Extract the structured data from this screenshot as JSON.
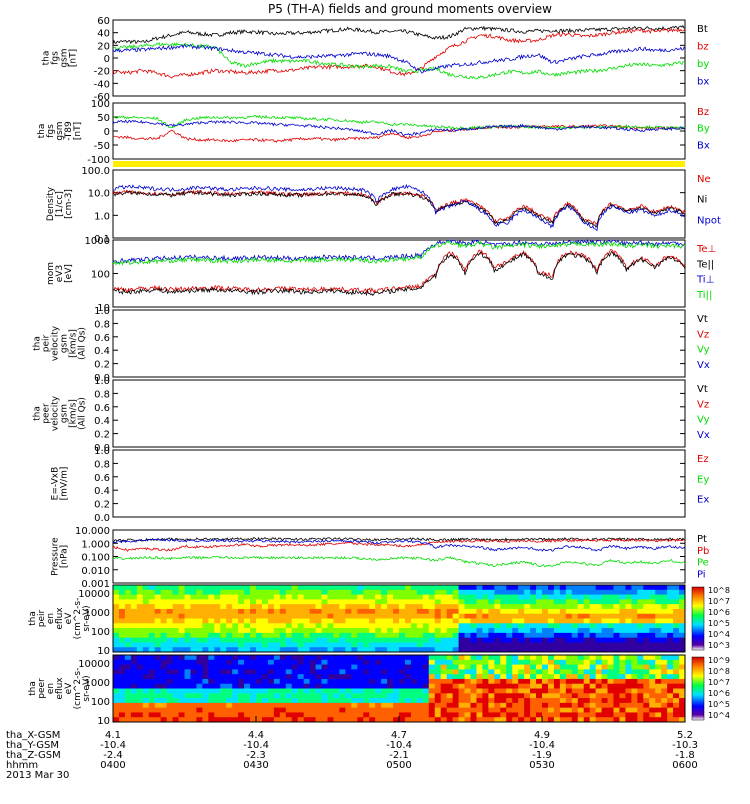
{
  "title": "P5 (TH-A) fields and ground moments overview",
  "date_label": "2013 Mar 30",
  "time_axis": {
    "ticks": [
      "0400",
      "0430",
      "0500",
      "0530",
      "0600"
    ],
    "rows": [
      {
        "label": "tha_X-GSM",
        "values": [
          "4.1",
          "4.4",
          "4.7",
          "4.9",
          "5.2"
        ]
      },
      {
        "label": "tha_Y-GSM",
        "values": [
          "-10.4",
          "-10.4",
          "-10.4",
          "-10.4",
          "-10.3"
        ]
      },
      {
        "label": "tha_Z-GSM",
        "values": [
          "-2.4",
          "-2.3",
          "-2.1",
          "-1.9",
          "-1.8"
        ]
      },
      {
        "label": "hhmm",
        "values": [
          "0400",
          "0430",
          "0500",
          "0530",
          "0600"
        ]
      }
    ]
  },
  "colors": {
    "black": "#000000",
    "red": "#e00000",
    "green": "#00dd00",
    "blue": "#0000d0",
    "yellow": "#ffee00"
  },
  "chart_data": [
    {
      "type": "line",
      "id": "fgs",
      "ylabel_lines": [
        "tha",
        "fgs",
        "gsm",
        "[nT]"
      ],
      "yticks": [
        "60",
        "40",
        "20",
        "0",
        "-20",
        "-40",
        "-60"
      ],
      "ylim": [
        -60,
        65
      ],
      "series": [
        {
          "name": "Bt",
          "color": "#000000",
          "values": [
            28,
            30,
            28,
            35,
            40,
            45,
            42,
            40,
            44,
            46,
            45,
            42,
            43,
            44,
            46,
            48,
            50,
            48,
            45,
            46,
            46,
            40,
            35,
            38,
            50,
            52,
            50,
            48,
            46,
            47,
            48,
            47,
            48,
            49,
            50,
            51,
            52,
            51,
            52,
            53
          ]
        },
        {
          "name": "bz",
          "color": "#e00000",
          "values": [
            -20,
            -22,
            -18,
            -22,
            -28,
            -25,
            -22,
            -18,
            -20,
            -22,
            -20,
            -18,
            -18,
            -15,
            -12,
            -12,
            -12,
            -10,
            -12,
            -20,
            -25,
            -15,
            5,
            20,
            30,
            40,
            38,
            32,
            30,
            32,
            40,
            42,
            38,
            40,
            44,
            46,
            48,
            46,
            48,
            50
          ]
        },
        {
          "name": "by",
          "color": "#00dd00",
          "values": [
            18,
            20,
            22,
            25,
            25,
            24,
            22,
            20,
            -5,
            -10,
            -5,
            -2,
            -3,
            -2,
            -5,
            -8,
            -10,
            -12,
            -10,
            -12,
            -20,
            -18,
            -15,
            -25,
            -28,
            -30,
            -25,
            -20,
            -22,
            -20,
            -25,
            -22,
            -20,
            -18,
            -15,
            -10,
            -8,
            -10,
            -8,
            -5
          ]
        },
        {
          "name": "bx",
          "color": "#0000d0",
          "values": [
            15,
            15,
            16,
            18,
            20,
            22,
            20,
            18,
            15,
            12,
            10,
            8,
            5,
            4,
            5,
            6,
            8,
            10,
            8,
            5,
            -5,
            -20,
            -15,
            -10,
            -8,
            -5,
            -2,
            0,
            5,
            8,
            -5,
            0,
            5,
            8,
            12,
            15,
            18,
            15,
            16,
            18
          ]
        }
      ]
    },
    {
      "type": "line",
      "id": "t89",
      "ylabel_lines": [
        "tha",
        "fgs",
        "gsm",
        "-T89",
        "[nT]"
      ],
      "yticks": [
        "100",
        "50",
        "0",
        "-50",
        "-100"
      ],
      "ylim": [
        -125,
        110
      ],
      "series": [
        {
          "name": "Bz",
          "color": "#e00000",
          "values": [
            -30,
            -35,
            -40,
            -40,
            -5,
            -40,
            -45,
            -45,
            -50,
            -45,
            -45,
            -50,
            -45,
            -40,
            -40,
            -45,
            -40,
            -38,
            -35,
            -15,
            -35,
            -30,
            -10,
            -5,
            0,
            5,
            10,
            8,
            10,
            12,
            12,
            10,
            12,
            14,
            12,
            10,
            5,
            5,
            5,
            5
          ]
        },
        {
          "name": "By",
          "color": "#00dd00",
          "values": [
            50,
            50,
            48,
            45,
            5,
            40,
            48,
            50,
            48,
            50,
            52,
            50,
            48,
            45,
            42,
            40,
            35,
            30,
            30,
            20,
            20,
            15,
            10,
            8,
            5,
            8,
            10,
            12,
            10,
            8,
            8,
            5,
            10,
            8,
            10,
            12,
            10,
            8,
            5,
            5
          ]
        },
        {
          "name": "Bx",
          "color": "#0000d0",
          "values": [
            30,
            32,
            30,
            25,
            15,
            20,
            28,
            30,
            30,
            28,
            25,
            20,
            18,
            15,
            10,
            5,
            0,
            -10,
            -20,
            -5,
            -25,
            -15,
            0,
            -5,
            0,
            5,
            10,
            12,
            15,
            8,
            0,
            5,
            10,
            8,
            5,
            0,
            -5,
            0,
            2,
            5
          ]
        }
      ]
    },
    {
      "type": "line",
      "id": "density",
      "log": true,
      "ylabel_lines": [
        "Density",
        "[1/cc]",
        "[cm-3]"
      ],
      "yticks": [
        "100.0",
        "10.0",
        "1.0",
        "0.1"
      ],
      "ylim": [
        0.1,
        150
      ],
      "series": [
        {
          "name": "Ne",
          "color": "#e00000",
          "values": [
            12,
            14,
            13,
            12,
            11,
            13,
            14,
            12,
            11,
            12,
            13,
            12,
            11,
            11,
            12,
            13,
            12,
            11,
            4,
            12,
            13,
            10,
            2,
            4,
            6,
            3,
            0.6,
            0.8,
            3,
            1.2,
            0.6,
            4,
            0.8,
            0.4,
            4,
            2,
            3,
            1.5,
            3,
            1.5
          ]
        },
        {
          "name": "Ni",
          "color": "#000000",
          "values": [
            11,
            13,
            12,
            11,
            10,
            12,
            13,
            11,
            10,
            11,
            12,
            11,
            10,
            10,
            11,
            12,
            11,
            10,
            3.5,
            11,
            12,
            9,
            1.8,
            3.5,
            5,
            2.5,
            0.5,
            0.7,
            2.5,
            1,
            0.5,
            3.5,
            0.7,
            0.35,
            3.5,
            1.8,
            2.5,
            1.3,
            2.5,
            1.3
          ]
        },
        {
          "name": "Npot",
          "color": "#0000d0",
          "values": [
            20,
            25,
            22,
            20,
            18,
            20,
            24,
            20,
            18,
            20,
            22,
            20,
            18,
            18,
            20,
            22,
            20,
            18,
            5,
            18,
            25,
            15,
            1.5,
            3,
            5,
            2,
            0.4,
            0.5,
            2,
            0.8,
            0.3,
            3,
            0.5,
            0.25,
            3,
            1.5,
            2,
            1,
            2,
            1
          ]
        }
      ]
    },
    {
      "type": "line",
      "id": "temp",
      "log": true,
      "ylabel_lines": [
        "mom",
        "eV3",
        "[eV]"
      ],
      "yticks": [
        "1000",
        "100",
        "10"
      ],
      "ylim": [
        10,
        5000
      ],
      "series": [
        {
          "name": "Te⊥",
          "color": "#e00000",
          "values": [
            55,
            50,
            55,
            60,
            50,
            55,
            58,
            60,
            55,
            52,
            50,
            55,
            55,
            50,
            52,
            55,
            50,
            48,
            45,
            55,
            60,
            70,
            200,
            1500,
            250,
            1800,
            400,
            700,
            1500,
            250,
            180,
            1600,
            1200,
            300,
            1800,
            350,
            900,
            450,
            1200,
            400
          ]
        },
        {
          "name": "Te||",
          "color": "#000000",
          "values": [
            45,
            40,
            45,
            50,
            40,
            45,
            48,
            50,
            45,
            42,
            40,
            45,
            45,
            40,
            42,
            45,
            40,
            38,
            35,
            45,
            50,
            60,
            180,
            1300,
            200,
            1500,
            300,
            600,
            1300,
            200,
            150,
            1400,
            1000,
            250,
            1500,
            300,
            800,
            400,
            1000,
            350
          ]
        },
        {
          "name": "Ti⊥",
          "color": "#0000d0",
          "values": [
            700,
            750,
            800,
            900,
            950,
            1000,
            1000,
            950,
            900,
            950,
            1000,
            950,
            900,
            950,
            1000,
            1050,
            1000,
            950,
            900,
            1000,
            1100,
            1200,
            3500,
            5000,
            3500,
            4500,
            3000,
            3500,
            4000,
            3500,
            3500,
            4000,
            4500,
            4000,
            4500,
            3500,
            4000,
            3500,
            3800,
            3500
          ]
        },
        {
          "name": "Ti||",
          "color": "#00dd00",
          "values": [
            600,
            620,
            650,
            700,
            750,
            800,
            800,
            750,
            700,
            750,
            800,
            750,
            700,
            750,
            800,
            850,
            800,
            750,
            700,
            800,
            900,
            1000,
            2800,
            4000,
            2800,
            3600,
            2500,
            2800,
            3200,
            2800,
            2800,
            3200,
            3600,
            3200,
            3600,
            2800,
            3200,
            2800,
            3000,
            2800
          ]
        }
      ]
    },
    {
      "type": "line",
      "id": "peir_vel",
      "ylabel_lines": [
        "tha",
        "peir",
        "velocity",
        "gsm",
        "[km/s]",
        "(All Qs)"
      ],
      "yticks": [
        "1.0",
        "0.8",
        "0.6",
        "0.4",
        "0.2",
        "0.0"
      ],
      "ylim": [
        0,
        1
      ],
      "series": [
        {
          "name": "Vt",
          "color": "#000000",
          "values": []
        },
        {
          "name": "Vz",
          "color": "#e00000",
          "values": []
        },
        {
          "name": "Vy",
          "color": "#00dd00",
          "values": []
        },
        {
          "name": "Vx",
          "color": "#0000d0",
          "values": []
        }
      ]
    },
    {
      "type": "line",
      "id": "peer_vel",
      "ylabel_lines": [
        "tha",
        "peer",
        "velocity",
        "gsm",
        "[km/s]",
        "(All Qs)"
      ],
      "yticks": [
        "1.0",
        "0.8",
        "0.6",
        "0.4",
        "0.2",
        "0.0"
      ],
      "ylim": [
        0,
        1
      ],
      "series": [
        {
          "name": "Vt",
          "color": "#000000",
          "values": []
        },
        {
          "name": "Vz",
          "color": "#e00000",
          "values": []
        },
        {
          "name": "Vy",
          "color": "#00dd00",
          "values": []
        },
        {
          "name": "Vx",
          "color": "#0000d0",
          "values": []
        }
      ]
    },
    {
      "type": "line",
      "id": "efield",
      "ylabel_lines": [
        "E=-VxB",
        "[mV/m]"
      ],
      "yticks": [
        "1.0",
        "0.8",
        "0.6",
        "0.4",
        "0.2",
        "0.0"
      ],
      "ylim": [
        0,
        1
      ],
      "series": [
        {
          "name": "Ez",
          "color": "#e00000",
          "values": []
        },
        {
          "name": "Ey",
          "color": "#00dd00",
          "values": []
        },
        {
          "name": "Ex",
          "color": "#0000d0",
          "values": []
        }
      ]
    },
    {
      "type": "line",
      "id": "pressure",
      "log": true,
      "ylabel_lines": [
        "Pressure",
        "[nPa]"
      ],
      "yticks": [
        "10.000",
        "1.000",
        "0.100",
        "0.010",
        "0.001"
      ],
      "ylim": [
        0.001,
        10
      ],
      "series": [
        {
          "name": "Pt",
          "color": "#000000",
          "values": [
            1.6,
            1.7,
            1.8,
            1.9,
            2,
            2,
            2.1,
            2,
            2.1,
            2.2,
            2.2,
            2.1,
            2,
            2,
            2.1,
            2.2,
            2.1,
            2,
            1.9,
            2,
            2.1,
            2,
            1.8,
            1.9,
            2,
            2,
            1.9,
            2,
            2.1,
            2,
            2,
            2.1,
            2,
            2,
            2.1,
            2,
            2,
            2,
            2,
            2
          ]
        },
        {
          "name": "Pb",
          "color": "#e00000",
          "values": [
            0.5,
            0.3,
            0.4,
            0.35,
            0.3,
            0.6,
            0.5,
            0.6,
            0.7,
            0.8,
            0.6,
            0.7,
            0.8,
            0.7,
            0.8,
            0.9,
            1,
            0.9,
            0.8,
            0.7,
            0.6,
            0.8,
            1.2,
            1.3,
            1.4,
            1.5,
            1.5,
            1.4,
            1.5,
            1.4,
            1.5,
            1.6,
            1.7,
            1.6,
            1.7,
            1.6,
            1.7,
            1.6,
            1.7,
            1.6
          ]
        },
        {
          "name": "Pe",
          "color": "#00dd00",
          "values": [
            0.07,
            0.07,
            0.08,
            0.08,
            0.07,
            0.08,
            0.08,
            0.09,
            0.08,
            0.08,
            0.08,
            0.08,
            0.08,
            0.08,
            0.08,
            0.08,
            0.08,
            0.07,
            0.06,
            0.07,
            0.08,
            0.07,
            0.05,
            0.08,
            0.04,
            0.03,
            0.02,
            0.03,
            0.04,
            0.02,
            0.02,
            0.04,
            0.03,
            0.02,
            0.05,
            0.03,
            0.04,
            0.03,
            0.05,
            0.03
          ]
        },
        {
          "name": "Pi",
          "color": "#0000d0",
          "values": [
            1.2,
            1.4,
            1.6,
            1.8,
            1.7,
            1.5,
            1.6,
            1.7,
            1.5,
            1.4,
            1.5,
            1.4,
            1.3,
            1.3,
            1.4,
            1.5,
            1.4,
            1.3,
            1.1,
            1.3,
            1.5,
            1.2,
            0.5,
            0.7,
            0.6,
            0.5,
            0.3,
            0.4,
            0.5,
            0.3,
            0.3,
            0.6,
            0.5,
            0.25,
            0.6,
            0.4,
            0.5,
            0.4,
            0.6,
            0.4
          ]
        }
      ]
    },
    {
      "type": "heatmap",
      "id": "peir_en",
      "ylabel_lines": [
        "tha",
        "peir",
        "en",
        "eflux",
        "eV",
        "(cm^2-s-",
        "sr-eV)"
      ],
      "yticks": [
        "10000",
        "1000",
        "100",
        "10"
      ],
      "colorbar_labels": [
        "10^8",
        "10^7",
        "10^6",
        "10^5",
        "10^4",
        "10^3"
      ]
    },
    {
      "type": "heatmap",
      "id": "peer_en",
      "ylabel_lines": [
        "tha",
        "peer",
        "en",
        "eflux",
        "eV",
        "(cm^2-s-",
        "sr-eV)"
      ],
      "yticks": [
        "10000",
        "1000",
        "100",
        "10"
      ],
      "colorbar_labels": [
        "10^9",
        "10^8",
        "10^7",
        "10^6",
        "10^5",
        "10^4"
      ]
    }
  ]
}
